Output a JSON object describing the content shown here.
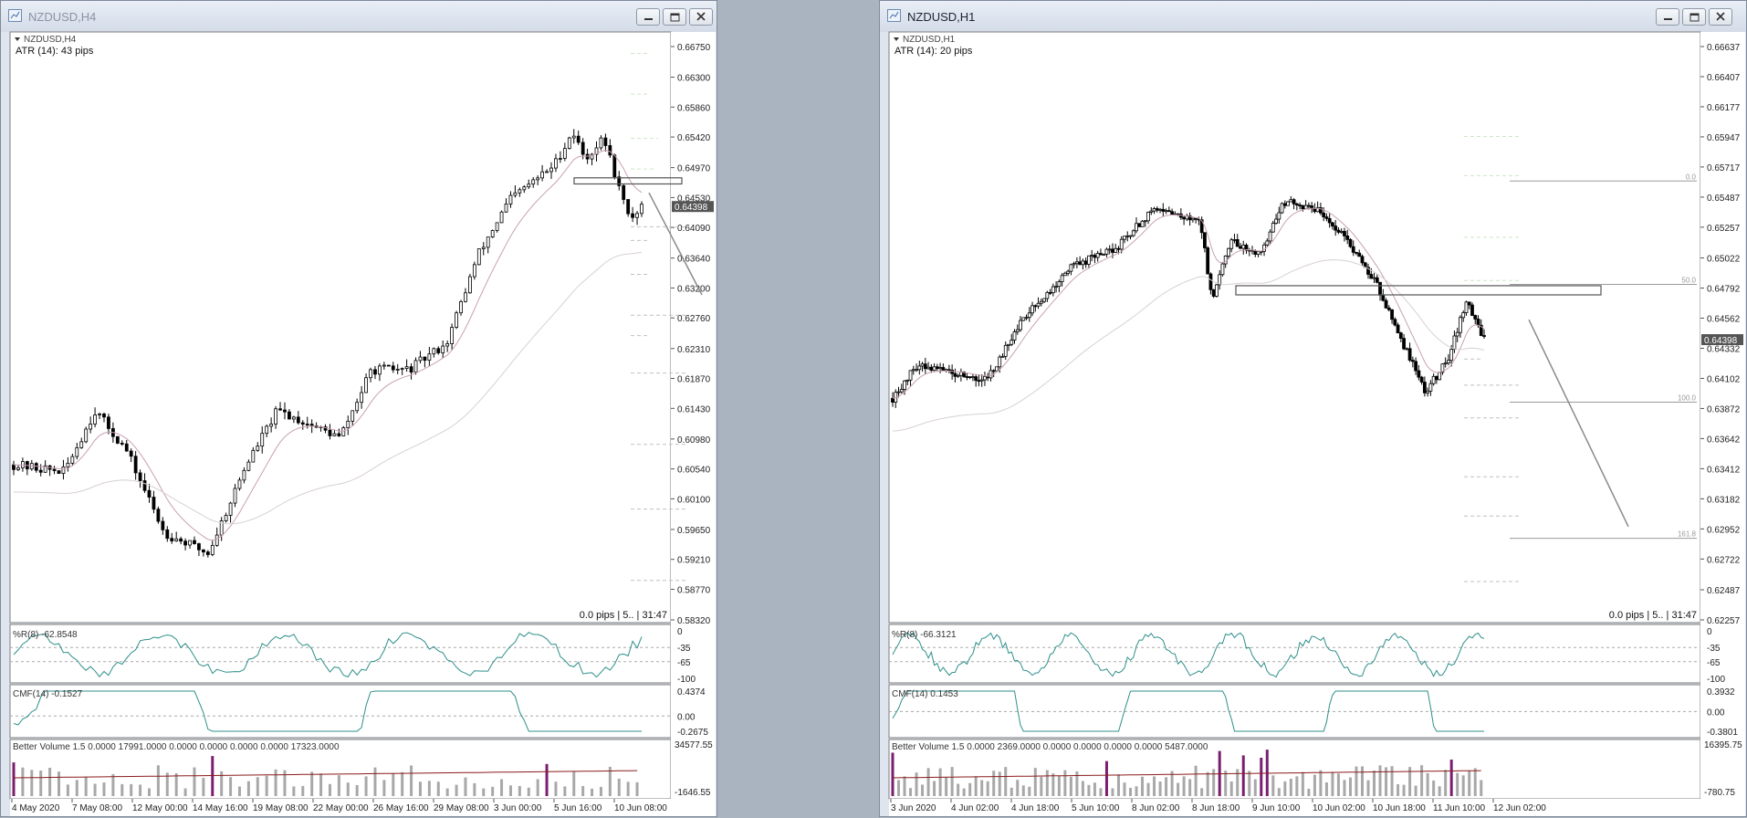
{
  "windows": [
    {
      "title": "NZDUSD,H4",
      "symbol_label": "NZDUSD,H4",
      "atr_label": "ATR (14): 43 pips",
      "status": "0.0 pips | 5.. | 31:47",
      "price_ticks": [
        "0.66750",
        "0.66300",
        "0.65860",
        "0.65420",
        "0.64970",
        "0.64530",
        "0.64090",
        "0.63640",
        "0.63200",
        "0.62760",
        "0.62310",
        "0.61870",
        "0.61430",
        "0.60980",
        "0.60540",
        "0.60100",
        "0.59650",
        "0.59210",
        "0.58770",
        "0.58320"
      ],
      "current_price": "0.64398",
      "wr_label": "%R(8) -62.8548",
      "wr_ticks": [
        "0",
        "-35",
        "-65",
        "-100"
      ],
      "cmf_label": "CMF(14) -0.1527",
      "cmf_ticks": [
        "0.4374",
        "0.00",
        "-0.2675"
      ],
      "vol_label": "Better Volume 1.5 0.0000 17991.0000 0.0000 0.0000 0.0000 0.0000 17323.0000",
      "vol_ticks": [
        "34577.55",
        "-1646.55"
      ],
      "date_ticks": [
        "4 May 2020",
        "7 May 08:00",
        "12 May 00:00",
        "14 May 16:00",
        "19 May 08:00",
        "22 May 00:00",
        "26 May 16:00",
        "29 May 08:00",
        "3 Jun 00:00",
        "5 Jun 16:00",
        "10 Jun 08:00"
      ],
      "fib_labels": []
    },
    {
      "title": "NZDUSD,H1",
      "symbol_label": "NZDUSD,H1",
      "atr_label": "ATR (14): 20 pips",
      "status": "0.0 pips | 5.. | 31:47",
      "price_ticks": [
        "0.66637",
        "0.66407",
        "0.66177",
        "0.65947",
        "0.65717",
        "0.65487",
        "0.65257",
        "0.65022",
        "0.64792",
        "0.64562",
        "0.64332",
        "0.64102",
        "0.63872",
        "0.63642",
        "0.63412",
        "0.63182",
        "0.62952",
        "0.62722",
        "0.62487",
        "0.62257"
      ],
      "current_price": "0.64398",
      "wr_label": "%R(8) -66.3121",
      "wr_ticks": [
        "0",
        "-35",
        "-65",
        "-100"
      ],
      "cmf_label": "CMF(14) 0.1453",
      "cmf_ticks": [
        "0.3932",
        "0.00",
        "-0.3801"
      ],
      "vol_label": "Better Volume 1.5 0.0000 2369.0000 0.0000 0.0000 0.0000 0.0000 5487.0000",
      "vol_ticks": [
        "16395.75",
        "-780.75"
      ],
      "date_ticks": [
        "3 Jun 2020",
        "4 Jun 02:00",
        "4 Jun 18:00",
        "5 Jun 10:00",
        "8 Jun 02:00",
        "8 Jun 18:00",
        "9 Jun 10:00",
        "10 Jun 02:00",
        "10 Jun 18:00",
        "11 Jun 10:00",
        "12 Jun 02:00"
      ],
      "fib_labels": [
        "0.0",
        "50.0",
        "100.0",
        "161.8"
      ]
    }
  ],
  "colors": {
    "candle": "#000000",
    "wr_line": "#2d8f8a",
    "cmf_line": "#2d8f8a",
    "vol_bar": "#a8a8a8",
    "vol_climax": "#7a1f6e",
    "vol_avg": "#8b1a1a",
    "ma": "#c8a0b4"
  },
  "icons": [
    "chart-window-icon",
    "minimize-icon",
    "restore-icon",
    "close-icon",
    "dropdown-triangle-icon"
  ]
}
